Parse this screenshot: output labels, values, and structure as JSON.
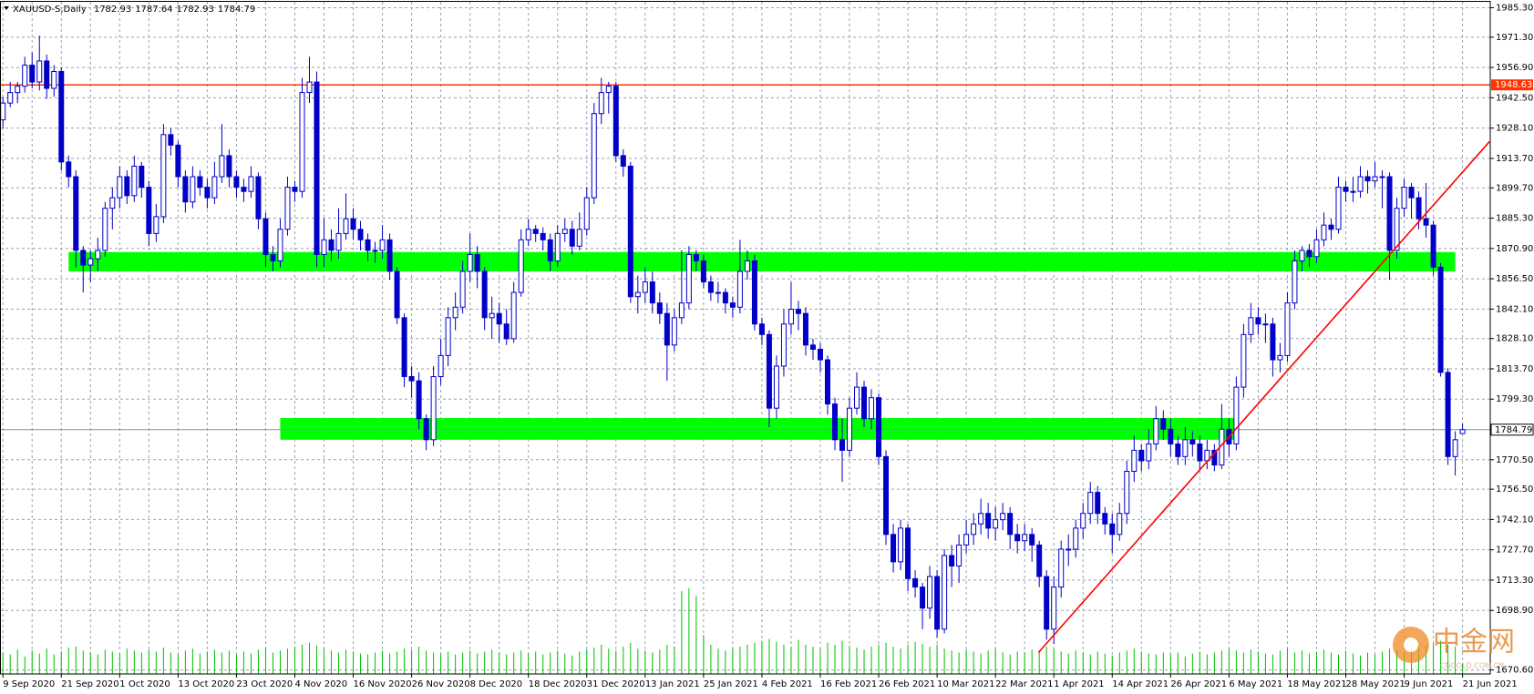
{
  "chart_data": {
    "type": "candlestick",
    "header": {
      "symbol": "XAUUSD-S,Daily",
      "ohlc": [
        1782.93,
        1787.64,
        1782.93,
        1784.79
      ]
    },
    "ylim": [
      1668.7,
      1988.1
    ],
    "yticks": [
      {
        "value": 1985.3,
        "label": "1985.30"
      },
      {
        "value": 1971.3,
        "label": "1971.30"
      },
      {
        "value": 1956.9,
        "label": "1956.90"
      },
      {
        "value": 1942.5,
        "label": "1942.50"
      },
      {
        "value": 1928.1,
        "label": "1928.10"
      },
      {
        "value": 1913.7,
        "label": "1913.70"
      },
      {
        "value": 1899.7,
        "label": "1899.70"
      },
      {
        "value": 1885.3,
        "label": "1885.30"
      },
      {
        "value": 1870.9,
        "label": "1870.90"
      },
      {
        "value": 1856.5,
        "label": "1856.50"
      },
      {
        "value": 1842.1,
        "label": "1842.10"
      },
      {
        "value": 1828.1,
        "label": "1828.10"
      },
      {
        "value": 1813.7,
        "label": "1813.70"
      },
      {
        "value": 1799.3,
        "label": "1799.30"
      },
      {
        "value": 1770.5,
        "label": "1770.50"
      },
      {
        "value": 1756.5,
        "label": "1756.50"
      },
      {
        "value": 1742.1,
        "label": "1742.10"
      },
      {
        "value": 1727.7,
        "label": "1727.70"
      },
      {
        "value": 1713.3,
        "label": "1713.30"
      },
      {
        "value": 1698.9,
        "label": "1698.90"
      },
      {
        "value": 1670.6,
        "label": "1670.60"
      }
    ],
    "grid": true,
    "x_labels": [
      "9 Sep 2020",
      "21 Sep 2020",
      "1 Oct 2020",
      "13 Oct 2020",
      "23 Oct 2020",
      "4 Nov 2020",
      "16 Nov 2020",
      "26 Nov 2020",
      "8 Dec 2020",
      "18 Dec 2020",
      "31 Dec 2020",
      "13 Jan 2021",
      "25 Jan 2021",
      "4 Feb 2021",
      "16 Feb 2021",
      "26 Feb 2021",
      "10 Mar 2021",
      "22 Mar 2021",
      "1 Apr 2021",
      "14 Apr 2021",
      "26 Apr 2021",
      "6 May 2021",
      "18 May 2021",
      "28 May 2021",
      "9 Jun 2021",
      "21 Jun 2021"
    ],
    "color": "#0000c8",
    "volume_color": "#00c000",
    "candles": [
      [
        1932,
        1943,
        1928,
        1940
      ],
      [
        1940,
        1950,
        1938,
        1945
      ],
      [
        1945,
        1950,
        1940,
        1948
      ],
      [
        1948,
        1962,
        1945,
        1958
      ],
      [
        1958,
        1964,
        1947,
        1950
      ],
      [
        1950,
        1972,
        1946,
        1960
      ],
      [
        1960,
        1963,
        1942,
        1947
      ],
      [
        1947,
        1958,
        1943,
        1955
      ],
      [
        1955,
        1957,
        1908,
        1912
      ],
      [
        1912,
        1915,
        1900,
        1905
      ],
      [
        1905,
        1908,
        1862,
        1870
      ],
      [
        1870,
        1872,
        1850,
        1863
      ],
      [
        1863,
        1870,
        1855,
        1866
      ],
      [
        1866,
        1876,
        1860,
        1870
      ],
      [
        1870,
        1893,
        1867,
        1890
      ],
      [
        1890,
        1900,
        1880,
        1895
      ],
      [
        1895,
        1910,
        1890,
        1905
      ],
      [
        1905,
        1908,
        1892,
        1896
      ],
      [
        1896,
        1915,
        1893,
        1910
      ],
      [
        1910,
        1912,
        1895,
        1900
      ],
      [
        1900,
        1903,
        1872,
        1878
      ],
      [
        1878,
        1892,
        1874,
        1886
      ],
      [
        1886,
        1930,
        1883,
        1925
      ],
      [
        1925,
        1928,
        1915,
        1920
      ],
      [
        1920,
        1922,
        1900,
        1905
      ],
      [
        1905,
        1908,
        1888,
        1893
      ],
      [
        1893,
        1910,
        1890,
        1905
      ],
      [
        1905,
        1908,
        1896,
        1900
      ],
      [
        1900,
        1904,
        1890,
        1895
      ],
      [
        1895,
        1912,
        1892,
        1905
      ],
      [
        1905,
        1930,
        1902,
        1915
      ],
      [
        1915,
        1918,
        1900,
        1905
      ],
      [
        1905,
        1908,
        1895,
        1900
      ],
      [
        1900,
        1904,
        1893,
        1898
      ],
      [
        1898,
        1910,
        1895,
        1905
      ],
      [
        1905,
        1907,
        1880,
        1885
      ],
      [
        1885,
        1888,
        1862,
        1868
      ],
      [
        1868,
        1872,
        1860,
        1865
      ],
      [
        1865,
        1885,
        1862,
        1880
      ],
      [
        1880,
        1905,
        1877,
        1900
      ],
      [
        1900,
        1903,
        1893,
        1898
      ],
      [
        1898,
        1952,
        1895,
        1945
      ],
      [
        1945,
        1962,
        1940,
        1950
      ],
      [
        1950,
        1955,
        1862,
        1868
      ],
      [
        1868,
        1885,
        1862,
        1875
      ],
      [
        1875,
        1880,
        1865,
        1870
      ],
      [
        1870,
        1890,
        1866,
        1878
      ],
      [
        1878,
        1897,
        1875,
        1885
      ],
      [
        1885,
        1890,
        1875,
        1880
      ],
      [
        1880,
        1884,
        1870,
        1875
      ],
      [
        1875,
        1878,
        1865,
        1870
      ],
      [
        1870,
        1874,
        1864,
        1870
      ],
      [
        1870,
        1882,
        1866,
        1875
      ],
      [
        1875,
        1878,
        1856,
        1860
      ],
      [
        1860,
        1862,
        1835,
        1838
      ],
      [
        1838,
        1840,
        1805,
        1810
      ],
      [
        1810,
        1815,
        1800,
        1808
      ],
      [
        1808,
        1812,
        1785,
        1790
      ],
      [
        1790,
        1792,
        1775,
        1780
      ],
      [
        1780,
        1815,
        1777,
        1810
      ],
      [
        1810,
        1828,
        1806,
        1820
      ],
      [
        1820,
        1843,
        1815,
        1838
      ],
      [
        1838,
        1850,
        1832,
        1843
      ],
      [
        1843,
        1865,
        1840,
        1860
      ],
      [
        1860,
        1878,
        1855,
        1868
      ],
      [
        1868,
        1872,
        1852,
        1860
      ],
      [
        1860,
        1862,
        1832,
        1838
      ],
      [
        1838,
        1848,
        1828,
        1840
      ],
      [
        1840,
        1845,
        1826,
        1835
      ],
      [
        1835,
        1842,
        1825,
        1828
      ],
      [
        1828,
        1855,
        1826,
        1850
      ],
      [
        1850,
        1880,
        1848,
        1875
      ],
      [
        1875,
        1885,
        1872,
        1880
      ],
      [
        1880,
        1882,
        1874,
        1878
      ],
      [
        1878,
        1881,
        1870,
        1875
      ],
      [
        1875,
        1878,
        1860,
        1865
      ],
      [
        1865,
        1882,
        1862,
        1878
      ],
      [
        1878,
        1885,
        1874,
        1880
      ],
      [
        1880,
        1884,
        1868,
        1872
      ],
      [
        1872,
        1888,
        1870,
        1880
      ],
      [
        1880,
        1900,
        1877,
        1895
      ],
      [
        1895,
        1940,
        1892,
        1935
      ],
      [
        1935,
        1952,
        1930,
        1945
      ],
      [
        1945,
        1950,
        1935,
        1948
      ],
      [
        1948,
        1950,
        1912,
        1915
      ],
      [
        1915,
        1918,
        1905,
        1910
      ],
      [
        1910,
        1912,
        1845,
        1848
      ],
      [
        1848,
        1858,
        1840,
        1850
      ],
      [
        1850,
        1862,
        1845,
        1855
      ],
      [
        1855,
        1860,
        1840,
        1845
      ],
      [
        1845,
        1850,
        1835,
        1840
      ],
      [
        1840,
        1845,
        1808,
        1825
      ],
      [
        1825,
        1842,
        1822,
        1838
      ],
      [
        1838,
        1870,
        1835,
        1845
      ],
      [
        1845,
        1872,
        1842,
        1868
      ],
      [
        1868,
        1870,
        1860,
        1865
      ],
      [
        1865,
        1868,
        1852,
        1855
      ],
      [
        1855,
        1858,
        1846,
        1850
      ],
      [
        1850,
        1855,
        1845,
        1850
      ],
      [
        1850,
        1852,
        1840,
        1845
      ],
      [
        1845,
        1848,
        1838,
        1843
      ],
      [
        1843,
        1875,
        1840,
        1860
      ],
      [
        1860,
        1870,
        1856,
        1865
      ],
      [
        1865,
        1868,
        1832,
        1835
      ],
      [
        1835,
        1838,
        1825,
        1830
      ],
      [
        1830,
        1832,
        1786,
        1795
      ],
      [
        1795,
        1820,
        1790,
        1815
      ],
      [
        1815,
        1842,
        1810,
        1835
      ],
      [
        1835,
        1855,
        1830,
        1842
      ],
      [
        1842,
        1846,
        1832,
        1840
      ],
      [
        1840,
        1843,
        1820,
        1825
      ],
      [
        1825,
        1828,
        1818,
        1823
      ],
      [
        1823,
        1826,
        1812,
        1818
      ],
      [
        1818,
        1820,
        1792,
        1797
      ],
      [
        1797,
        1800,
        1775,
        1780
      ],
      [
        1780,
        1790,
        1760,
        1775
      ],
      [
        1775,
        1800,
        1772,
        1795
      ],
      [
        1795,
        1812,
        1792,
        1805
      ],
      [
        1805,
        1808,
        1786,
        1790
      ],
      [
        1790,
        1804,
        1785,
        1800
      ],
      [
        1800,
        1802,
        1768,
        1772
      ],
      [
        1772,
        1775,
        1730,
        1735
      ],
      [
        1735,
        1740,
        1717,
        1722
      ],
      [
        1722,
        1742,
        1718,
        1738
      ],
      [
        1738,
        1740,
        1708,
        1714
      ],
      [
        1714,
        1718,
        1705,
        1710
      ],
      [
        1710,
        1712,
        1690,
        1700
      ],
      [
        1700,
        1720,
        1695,
        1715
      ],
      [
        1715,
        1718,
        1686,
        1690
      ],
      [
        1690,
        1728,
        1688,
        1725
      ],
      [
        1725,
        1730,
        1710,
        1720
      ],
      [
        1720,
        1735,
        1712,
        1730
      ],
      [
        1730,
        1742,
        1726,
        1735
      ],
      [
        1735,
        1745,
        1730,
        1740
      ],
      [
        1740,
        1752,
        1735,
        1745
      ],
      [
        1745,
        1750,
        1733,
        1738
      ],
      [
        1738,
        1748,
        1732,
        1742
      ],
      [
        1742,
        1750,
        1737,
        1745
      ],
      [
        1745,
        1748,
        1728,
        1735
      ],
      [
        1735,
        1740,
        1726,
        1732
      ],
      [
        1732,
        1740,
        1727,
        1735
      ],
      [
        1735,
        1738,
        1722,
        1730
      ],
      [
        1730,
        1732,
        1710,
        1715
      ],
      [
        1715,
        1718,
        1685,
        1690
      ],
      [
        1690,
        1715,
        1683,
        1710
      ],
      [
        1710,
        1732,
        1705,
        1728
      ],
      [
        1728,
        1735,
        1720,
        1728
      ],
      [
        1728,
        1742,
        1724,
        1738
      ],
      [
        1738,
        1750,
        1733,
        1745
      ],
      [
        1745,
        1760,
        1740,
        1755
      ],
      [
        1755,
        1758,
        1740,
        1745
      ],
      [
        1745,
        1748,
        1735,
        1740
      ],
      [
        1740,
        1745,
        1726,
        1735
      ],
      [
        1735,
        1750,
        1732,
        1745
      ],
      [
        1745,
        1770,
        1740,
        1765
      ],
      [
        1765,
        1782,
        1760,
        1775
      ],
      [
        1775,
        1778,
        1765,
        1770
      ],
      [
        1770,
        1785,
        1766,
        1778
      ],
      [
        1778,
        1796,
        1775,
        1790
      ],
      [
        1790,
        1794,
        1780,
        1785
      ],
      [
        1785,
        1790,
        1772,
        1778
      ],
      [
        1778,
        1782,
        1768,
        1772
      ],
      [
        1772,
        1786,
        1768,
        1780
      ],
      [
        1780,
        1784,
        1772,
        1778
      ],
      [
        1778,
        1782,
        1765,
        1770
      ],
      [
        1770,
        1780,
        1766,
        1775
      ],
      [
        1775,
        1778,
        1765,
        1768
      ],
      [
        1768,
        1797,
        1766,
        1785
      ],
      [
        1785,
        1790,
        1772,
        1778
      ],
      [
        1778,
        1810,
        1775,
        1805
      ],
      [
        1805,
        1835,
        1800,
        1830
      ],
      [
        1830,
        1845,
        1826,
        1838
      ],
      [
        1838,
        1843,
        1830,
        1835
      ],
      [
        1835,
        1840,
        1826,
        1835
      ],
      [
        1835,
        1838,
        1810,
        1818
      ],
      [
        1818,
        1826,
        1812,
        1820
      ],
      [
        1820,
        1850,
        1817,
        1845
      ],
      [
        1845,
        1870,
        1842,
        1865
      ],
      [
        1865,
        1872,
        1860,
        1870
      ],
      [
        1870,
        1873,
        1862,
        1867
      ],
      [
        1867,
        1880,
        1864,
        1875
      ],
      [
        1875,
        1888,
        1872,
        1882
      ],
      [
        1882,
        1885,
        1875,
        1880
      ],
      [
        1880,
        1905,
        1878,
        1900
      ],
      [
        1900,
        1903,
        1893,
        1898
      ],
      [
        1898,
        1905,
        1893,
        1898
      ],
      [
        1898,
        1910,
        1895,
        1905
      ],
      [
        1905,
        1908,
        1897,
        1903
      ],
      [
        1903,
        1912,
        1900,
        1905
      ],
      [
        1905,
        1908,
        1890,
        1905
      ],
      [
        1905,
        1907,
        1856,
        1870
      ],
      [
        1870,
        1895,
        1866,
        1890
      ],
      [
        1890,
        1904,
        1886,
        1900
      ],
      [
        1900,
        1902,
        1885,
        1895
      ],
      [
        1895,
        1898,
        1880,
        1885
      ],
      [
        1885,
        1902,
        1876,
        1882
      ],
      [
        1882,
        1884,
        1858,
        1862
      ],
      [
        1862,
        1864,
        1810,
        1812
      ],
      [
        1812,
        1814,
        1768,
        1772
      ],
      [
        1772,
        1784,
        1763,
        1780
      ],
      [
        1782.93,
        1787.64,
        1782.93,
        1784.79
      ]
    ],
    "volume": [
      22,
      20,
      25,
      18,
      24,
      21,
      26,
      20,
      23,
      27,
      28,
      24,
      22,
      20,
      25,
      23,
      21,
      26,
      24,
      22,
      25,
      23,
      27,
      22,
      20,
      24,
      26,
      21,
      23,
      25,
      22,
      24,
      20,
      23,
      21,
      25,
      27,
      22,
      24,
      26,
      28,
      30,
      32,
      29,
      26,
      24,
      22,
      25,
      23,
      21,
      20,
      22,
      24,
      21,
      23,
      26,
      25,
      28,
      24,
      22,
      21,
      23,
      20,
      22,
      24,
      21,
      23,
      25,
      22,
      20,
      22,
      24,
      21,
      23,
      20,
      22,
      24,
      21,
      19,
      23,
      25,
      27,
      30,
      26,
      24,
      28,
      32,
      26,
      24,
      22,
      25,
      30,
      28,
      85,
      88,
      80,
      40,
      30,
      26,
      24,
      26,
      28,
      30,
      32,
      34,
      36,
      33,
      30,
      28,
      35,
      30,
      28,
      26,
      32,
      30,
      34,
      29,
      27,
      25,
      28,
      30,
      32,
      28,
      26,
      30,
      33,
      31,
      28,
      30,
      26,
      24,
      22,
      25,
      23,
      21,
      24,
      26,
      22,
      20,
      23,
      22,
      25,
      24,
      28,
      26,
      23,
      21,
      24,
      22,
      20,
      23,
      21,
      19,
      22,
      24,
      26,
      23,
      21,
      20,
      22,
      20,
      22,
      18,
      21,
      23,
      20,
      22,
      24,
      26,
      24,
      22,
      25,
      23,
      21,
      20,
      24,
      26,
      22,
      24,
      21,
      23,
      25,
      22,
      20,
      24,
      21,
      19,
      22,
      20,
      23,
      26,
      24,
      22,
      25,
      28,
      30,
      32,
      34,
      30,
      28,
      10
    ],
    "hline": {
      "value": 1948.63,
      "color": "#ff3300"
    },
    "zones": [
      {
        "from": 9,
        "to": 199,
        "low": 1860,
        "high": 1869.2,
        "color": "#00ff00"
      },
      {
        "from": 38,
        "to": 168.8,
        "low": 1780,
        "high": 1790.3,
        "color": "#00ff00"
      }
    ],
    "trendline": {
      "points": [
        [
          141.9,
          1678.9
        ],
        [
          203.7,
          1921.7
        ]
      ],
      "color": "#ff0000"
    },
    "watermark": {
      "text": "中金网",
      "url": "CNGOLD.COM.CN"
    }
  }
}
